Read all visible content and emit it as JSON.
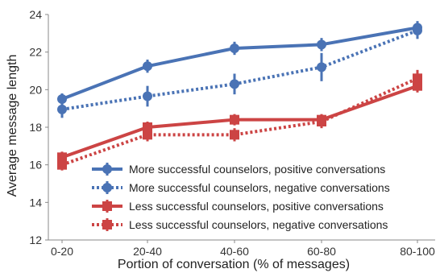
{
  "chart_data": {
    "type": "line",
    "title": "",
    "xlabel": "Portion of conversation (% of messages)",
    "ylabel": "Average message length",
    "categories": [
      "0-20",
      "20-40",
      "40-60",
      "60-80",
      "80-100"
    ],
    "ylim": [
      12,
      24
    ],
    "yticks": [
      12,
      14,
      16,
      18,
      20,
      22,
      24
    ],
    "grid": false,
    "legend_position": "lower-right",
    "series": [
      {
        "name": "More successful counselors, positive conversations",
        "values": [
          19.5,
          21.25,
          22.2,
          22.4,
          23.3
        ],
        "errors": [
          0.3,
          0.35,
          0.35,
          0.35,
          0.35
        ],
        "color": "#4a73b5",
        "dash": "solid",
        "marker": "circle"
      },
      {
        "name": "More successful counselors, negative conversations",
        "values": [
          18.95,
          19.65,
          20.3,
          21.2,
          23.15
        ],
        "errors": [
          0.45,
          0.55,
          0.55,
          0.75,
          0.45
        ],
        "color": "#4a73b5",
        "dash": "dotted",
        "marker": "circle"
      },
      {
        "name": "Less successful counselors, positive conversations",
        "values": [
          16.4,
          18.0,
          18.4,
          18.4,
          20.2
        ],
        "errors": [
          0.3,
          0.3,
          0.3,
          0.3,
          0.35
        ],
        "color": "#cc4444",
        "dash": "solid",
        "marker": "square"
      },
      {
        "name": "Less successful counselors, negative conversations",
        "values": [
          16.0,
          17.6,
          17.6,
          18.3,
          20.6
        ],
        "errors": [
          0.3,
          0.35,
          0.35,
          0.35,
          0.45
        ],
        "color": "#cc4444",
        "dash": "dotted",
        "marker": "square"
      }
    ]
  }
}
